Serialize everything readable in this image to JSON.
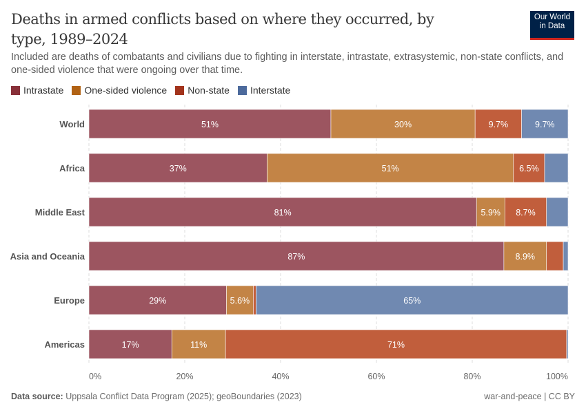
{
  "header": {
    "title": "Deaths in armed conflicts based on where they occurred, by type, 1989–2024",
    "subtitle": "Included are deaths of combatants and civilians due to fighting in interstate, intrastate, extrasystemic, non-state conflicts, and one-sided violence that were ongoing over that time.",
    "logo": "Our World in Data"
  },
  "footer": {
    "source_label": "Data source:",
    "source": "Uppsala Conflict Data Program (2025); geoBoundaries (2023)",
    "license": "war-and-peace | CC BY"
  },
  "chart_data": {
    "type": "bar",
    "orientation": "horizontal",
    "stacked": true,
    "categories": [
      "World",
      "Africa",
      "Middle East",
      "Asia and Oceania",
      "Europe",
      "Americas"
    ],
    "series": [
      {
        "name": "Intrastate",
        "color": "#9c5560",
        "legend_color": "#883039",
        "values": [
          50.5,
          37.2,
          80.9,
          86.6,
          28.7,
          17.3
        ],
        "labels": [
          "51%",
          "37%",
          "81%",
          "87%",
          "29%",
          "17%"
        ]
      },
      {
        "name": "One-sided violence",
        "color": "#c38446",
        "legend_color": "#b16214",
        "values": [
          30.1,
          51.4,
          5.9,
          8.9,
          5.6,
          11.2
        ],
        "labels": [
          "30%",
          "51%",
          "5.9%",
          "8.9%",
          "5.6%",
          "11%"
        ]
      },
      {
        "name": "Non-state",
        "color": "#c15e3c",
        "legend_color": "#a2331c",
        "values": [
          9.7,
          6.5,
          8.7,
          3.5,
          0.6,
          71.2
        ],
        "labels": [
          "9.7%",
          "6.5%",
          "8.7%",
          null,
          null,
          "71%"
        ]
      },
      {
        "name": "Interstate",
        "color": "#7089b1",
        "legend_color": "#4c6a9c",
        "values": [
          9.7,
          4.9,
          4.5,
          1.0,
          65.1,
          0.3
        ],
        "labels": [
          "9.7%",
          null,
          null,
          null,
          "65%",
          null
        ]
      }
    ],
    "xlim": [
      0,
      100
    ],
    "xticks": [
      "0%",
      "20%",
      "40%",
      "60%",
      "80%",
      "100%"
    ],
    "grid": "vertical dashed",
    "legend": "top-left"
  }
}
